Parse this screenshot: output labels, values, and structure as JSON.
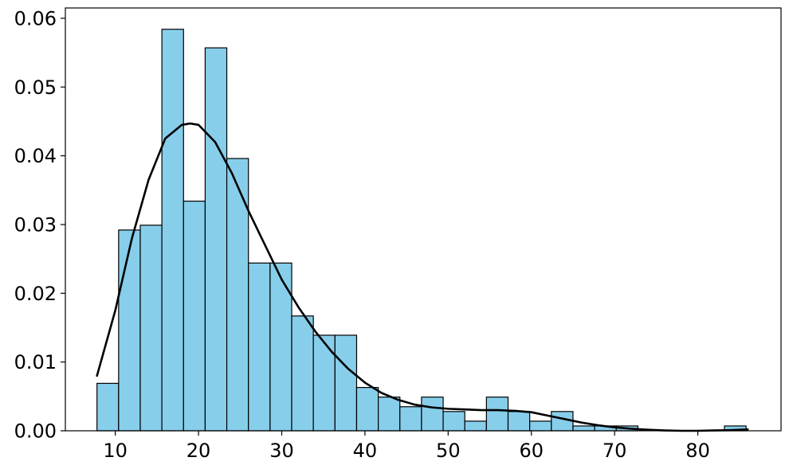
{
  "chart_data": {
    "type": "bar",
    "subtype": "histogram-with-density-curve",
    "title": "",
    "xlabel": "",
    "ylabel": "",
    "xlim": [
      4,
      90
    ],
    "ylim": [
      0,
      0.0615
    ],
    "grid": false,
    "legend": "none",
    "bar_color": "#87ceeb",
    "bar_edge_color": "#000000",
    "line_color": "#000000",
    "x_ticks": [
      10,
      20,
      30,
      40,
      50,
      60,
      70,
      80
    ],
    "x_tick_labels": [
      "10",
      "20",
      "30",
      "40",
      "50",
      "60",
      "70",
      "80"
    ],
    "y_ticks": [
      0.0,
      0.01,
      0.02,
      0.03,
      0.04,
      0.05,
      0.06
    ],
    "y_tick_labels": [
      "0.00",
      "0.01",
      "0.02",
      "0.03",
      "0.04",
      "0.05",
      "0.06"
    ],
    "bins": [
      {
        "x0": 7.8,
        "x1": 10.4,
        "density": 0.0069
      },
      {
        "x0": 10.4,
        "x1": 13.0,
        "density": 0.0292
      },
      {
        "x0": 13.0,
        "x1": 15.6,
        "density": 0.0299
      },
      {
        "x0": 15.6,
        "x1": 18.2,
        "density": 0.0584
      },
      {
        "x0": 18.2,
        "x1": 20.8,
        "density": 0.0334
      },
      {
        "x0": 20.8,
        "x1": 23.4,
        "density": 0.0557
      },
      {
        "x0": 23.4,
        "x1": 26.0,
        "density": 0.0396
      },
      {
        "x0": 26.0,
        "x1": 28.6,
        "density": 0.0244
      },
      {
        "x0": 28.6,
        "x1": 31.2,
        "density": 0.0244
      },
      {
        "x0": 31.2,
        "x1": 33.8,
        "density": 0.0167
      },
      {
        "x0": 33.8,
        "x1": 36.4,
        "density": 0.0139
      },
      {
        "x0": 36.4,
        "x1": 39.0,
        "density": 0.0139
      },
      {
        "x0": 39.0,
        "x1": 41.6,
        "density": 0.0063
      },
      {
        "x0": 41.6,
        "x1": 44.2,
        "density": 0.0049
      },
      {
        "x0": 44.2,
        "x1": 46.8,
        "density": 0.0035
      },
      {
        "x0": 46.8,
        "x1": 49.4,
        "density": 0.0049
      },
      {
        "x0": 49.4,
        "x1": 52.0,
        "density": 0.0028
      },
      {
        "x0": 52.0,
        "x1": 54.6,
        "density": 0.0014
      },
      {
        "x0": 54.6,
        "x1": 57.2,
        "density": 0.0049
      },
      {
        "x0": 57.2,
        "x1": 59.8,
        "density": 0.0028
      },
      {
        "x0": 59.8,
        "x1": 62.4,
        "density": 0.0014
      },
      {
        "x0": 62.4,
        "x1": 65.0,
        "density": 0.0028
      },
      {
        "x0": 65.0,
        "x1": 67.6,
        "density": 0.0007
      },
      {
        "x0": 67.6,
        "x1": 70.2,
        "density": 0.0007
      },
      {
        "x0": 70.2,
        "x1": 72.8,
        "density": 0.0007
      },
      {
        "x0": 72.8,
        "x1": 75.4,
        "density": 0.0
      },
      {
        "x0": 75.4,
        "x1": 78.0,
        "density": 0.0
      },
      {
        "x0": 78.0,
        "x1": 80.6,
        "density": 0.0
      },
      {
        "x0": 80.6,
        "x1": 83.2,
        "density": 0.0
      },
      {
        "x0": 83.2,
        "x1": 85.8,
        "density": 0.0007
      }
    ],
    "density_curve": {
      "x": [
        7.8,
        10,
        12,
        14,
        16,
        18,
        19,
        20,
        22,
        24,
        26,
        28,
        30,
        32,
        34,
        36,
        38,
        40,
        42,
        44,
        46,
        48,
        50,
        52,
        54,
        56,
        58,
        60,
        62,
        64,
        66,
        68,
        70,
        72,
        74,
        76,
        78,
        80,
        82,
        84,
        86
      ],
      "y": [
        0.008,
        0.0175,
        0.028,
        0.0365,
        0.0425,
        0.0445,
        0.0447,
        0.0445,
        0.042,
        0.0375,
        0.032,
        0.027,
        0.022,
        0.018,
        0.0145,
        0.0115,
        0.009,
        0.007,
        0.0055,
        0.0045,
        0.0038,
        0.0034,
        0.0032,
        0.0031,
        0.003,
        0.003,
        0.0029,
        0.0027,
        0.0022,
        0.0017,
        0.0012,
        0.0008,
        0.0005,
        0.0003,
        0.00015,
        5e-05,
        0.0,
        0.0,
        5e-05,
        0.0001,
        0.0002
      ]
    }
  }
}
